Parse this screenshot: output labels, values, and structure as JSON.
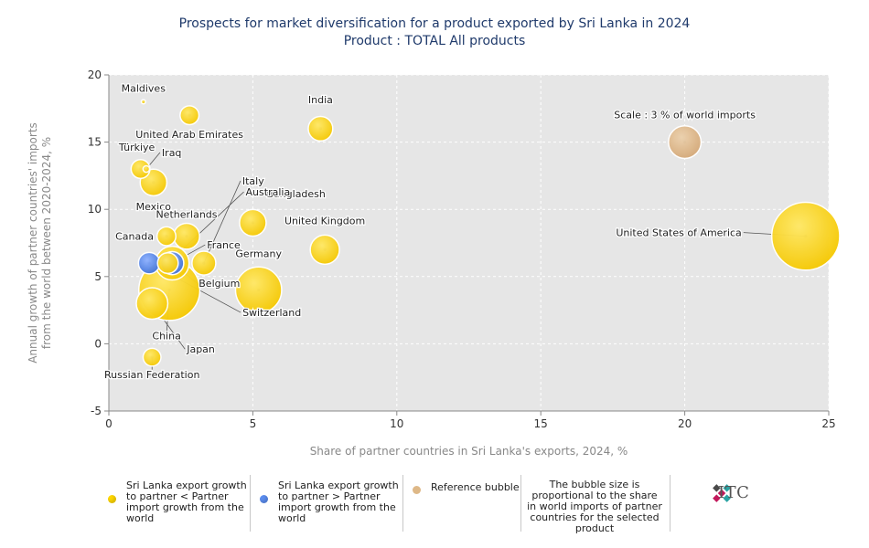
{
  "title": "Prospects for market diversification for a product exported by Sri Lanka in 2024",
  "subtitle": "Product : TOTAL All products",
  "chart_data": {
    "type": "scatter",
    "bubble": true,
    "xlabel": "Share of partner countries in Sri Lanka's exports, 2024, %",
    "ylabel_lines": [
      "Annual growth of partner countries' imports",
      "from the world between 2020-2024, %"
    ],
    "xlim": [
      0,
      25
    ],
    "ylim": [
      -5,
      20
    ],
    "xticks": [
      0,
      5,
      10,
      15,
      20,
      25
    ],
    "yticks": [
      -5,
      0,
      5,
      10,
      15,
      20
    ],
    "grid": true,
    "colors": {
      "slower": "#ffd700",
      "faster": "#5b8def",
      "reference": "#deb887"
    },
    "points": [
      {
        "label": "United States of America",
        "x": 24.2,
        "y": 8,
        "size": 13.0,
        "group": "slower"
      },
      {
        "label": "India",
        "x": 7.35,
        "y": 16,
        "size": 1.7,
        "group": "slower"
      },
      {
        "label": "United Kingdom",
        "x": 7.5,
        "y": 7,
        "size": 2.4,
        "group": "slower"
      },
      {
        "label": "Germany",
        "x": 5.2,
        "y": 4,
        "size": 6.0,
        "group": "slower"
      },
      {
        "label": "Italy",
        "x": 3.3,
        "y": 6,
        "size": 1.6,
        "group": "slower"
      },
      {
        "label": "Bangladesh",
        "x": 5.0,
        "y": 9,
        "size": 2.0,
        "group": "slower"
      },
      {
        "label": "Maldives",
        "x": 1.2,
        "y": 18,
        "size": 0.05,
        "group": "slower"
      },
      {
        "label": "United Arab Emirates",
        "x": 2.8,
        "y": 17,
        "size": 1.0,
        "group": "slower"
      },
      {
        "label": "Türkiye",
        "x": 1.1,
        "y": 13,
        "size": 1.0,
        "group": "slower"
      },
      {
        "label": "Iraq",
        "x": 1.3,
        "y": 13,
        "size": 0.12,
        "group": "slower"
      },
      {
        "label": "Mexico",
        "x": 1.55,
        "y": 12,
        "size": 2.0,
        "group": "slower"
      },
      {
        "label": "Netherlands",
        "x": 2.7,
        "y": 8,
        "size": 1.9,
        "group": "slower"
      },
      {
        "label": "Canada",
        "x": 2.0,
        "y": 8,
        "size": 1.0,
        "group": "slower"
      },
      {
        "label": "France",
        "x": 2.2,
        "y": 6,
        "size": 3.2,
        "group": "slower"
      },
      {
        "label": "Australia",
        "x": 2.05,
        "y": 6,
        "size": 1.2,
        "group": "slower"
      },
      {
        "label": "China",
        "x": 2.1,
        "y": 4,
        "size": 10.5,
        "group": "slower"
      },
      {
        "label": "Japan",
        "x": 1.5,
        "y": 3,
        "size": 2.8,
        "group": "slower"
      },
      {
        "label": "Belgium",
        "x": 2.2,
        "y": 6,
        "size": 1.5,
        "group": "faster"
      },
      {
        "label": "Switzerland",
        "x": 1.4,
        "y": 6,
        "size": 1.3,
        "group": "faster"
      },
      {
        "label": "Russian Federation",
        "x": 1.5,
        "y": -1,
        "size": 0.9,
        "group": "slower"
      },
      {
        "label": "Scale : 3 % of world imports",
        "x": 20.0,
        "y": 15,
        "size": 3.0,
        "group": "reference"
      }
    ]
  },
  "legend": {
    "slower": "Sri Lanka export growth to partner < Partner import growth from the world",
    "faster": "Sri Lanka export growth to partner > Partner import growth from the world",
    "reference": "Reference bubble",
    "note": "The bubble size is proportional to the share in world imports of partner countries for the selected product"
  },
  "logo_text": "ITC"
}
